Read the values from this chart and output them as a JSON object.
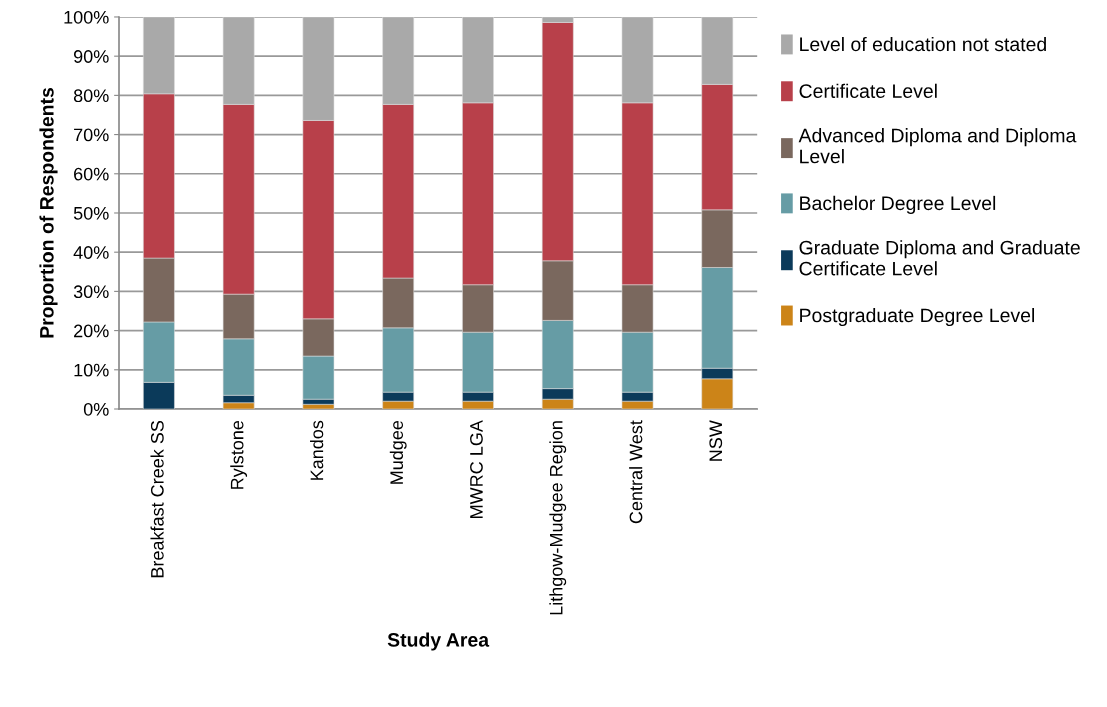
{
  "chart_data": {
    "type": "bar",
    "stacked": true,
    "xlabel": "Study Area",
    "ylabel": "Proportion of Respondents",
    "categories": [
      "Breakfast Creek SS",
      "Rylstone",
      "Kandos",
      "Mudgee",
      "MWRC LGA",
      "Lithgow-Mudgee Region",
      "Central West",
      "NSW"
    ],
    "series": [
      {
        "name": "Postgraduate Degree Level",
        "color": "#cc8418",
        "values": [
          0,
          1.6,
          1.2,
          2.0,
          2.0,
          2.5,
          2.0,
          7.7
        ]
      },
      {
        "name": "Graduate Diploma and Graduate\nCertificate Level",
        "color": "#0b3a5a",
        "values": [
          6.8,
          1.9,
          1.3,
          2.3,
          2.3,
          2.7,
          2.3,
          2.7
        ]
      },
      {
        "name": "Bachelor Degree Level",
        "color": "#669ca5",
        "values": [
          15.4,
          14.4,
          11.0,
          16.4,
          15.3,
          17.4,
          15.3,
          25.7
        ]
      },
      {
        "name": "Advanced Diploma and Diploma\nLevel",
        "color": "#7a685e",
        "values": [
          16.3,
          11.4,
          9.5,
          12.7,
          12.1,
          15.2,
          12.1,
          14.7
        ]
      },
      {
        "name": "Certificate Level",
        "color": "#b8404a",
        "values": [
          41.9,
          48.4,
          50.6,
          44.3,
          46.4,
          60.8,
          46.4,
          32.0
        ]
      },
      {
        "name": "Level of education not stated",
        "color": "#a9a9a9",
        "values": [
          19.6,
          22.3,
          26.4,
          22.3,
          21.9,
          1.4,
          21.9,
          17.2
        ]
      }
    ],
    "ylim": [
      0,
      100
    ],
    "yticks": [
      {
        "value": 0,
        "label": "0%"
      },
      {
        "value": 10,
        "label": "10%"
      },
      {
        "value": 20,
        "label": "20%"
      },
      {
        "value": 30,
        "label": "30%"
      },
      {
        "value": 40,
        "label": "40%"
      },
      {
        "value": 50,
        "label": "50%"
      },
      {
        "value": 60,
        "label": "60%"
      },
      {
        "value": 70,
        "label": "70%"
      },
      {
        "value": 80,
        "label": "80%"
      },
      {
        "value": 90,
        "label": "90%"
      },
      {
        "value": 100,
        "label": "100%"
      }
    ],
    "grid": "y",
    "legend": "right"
  }
}
